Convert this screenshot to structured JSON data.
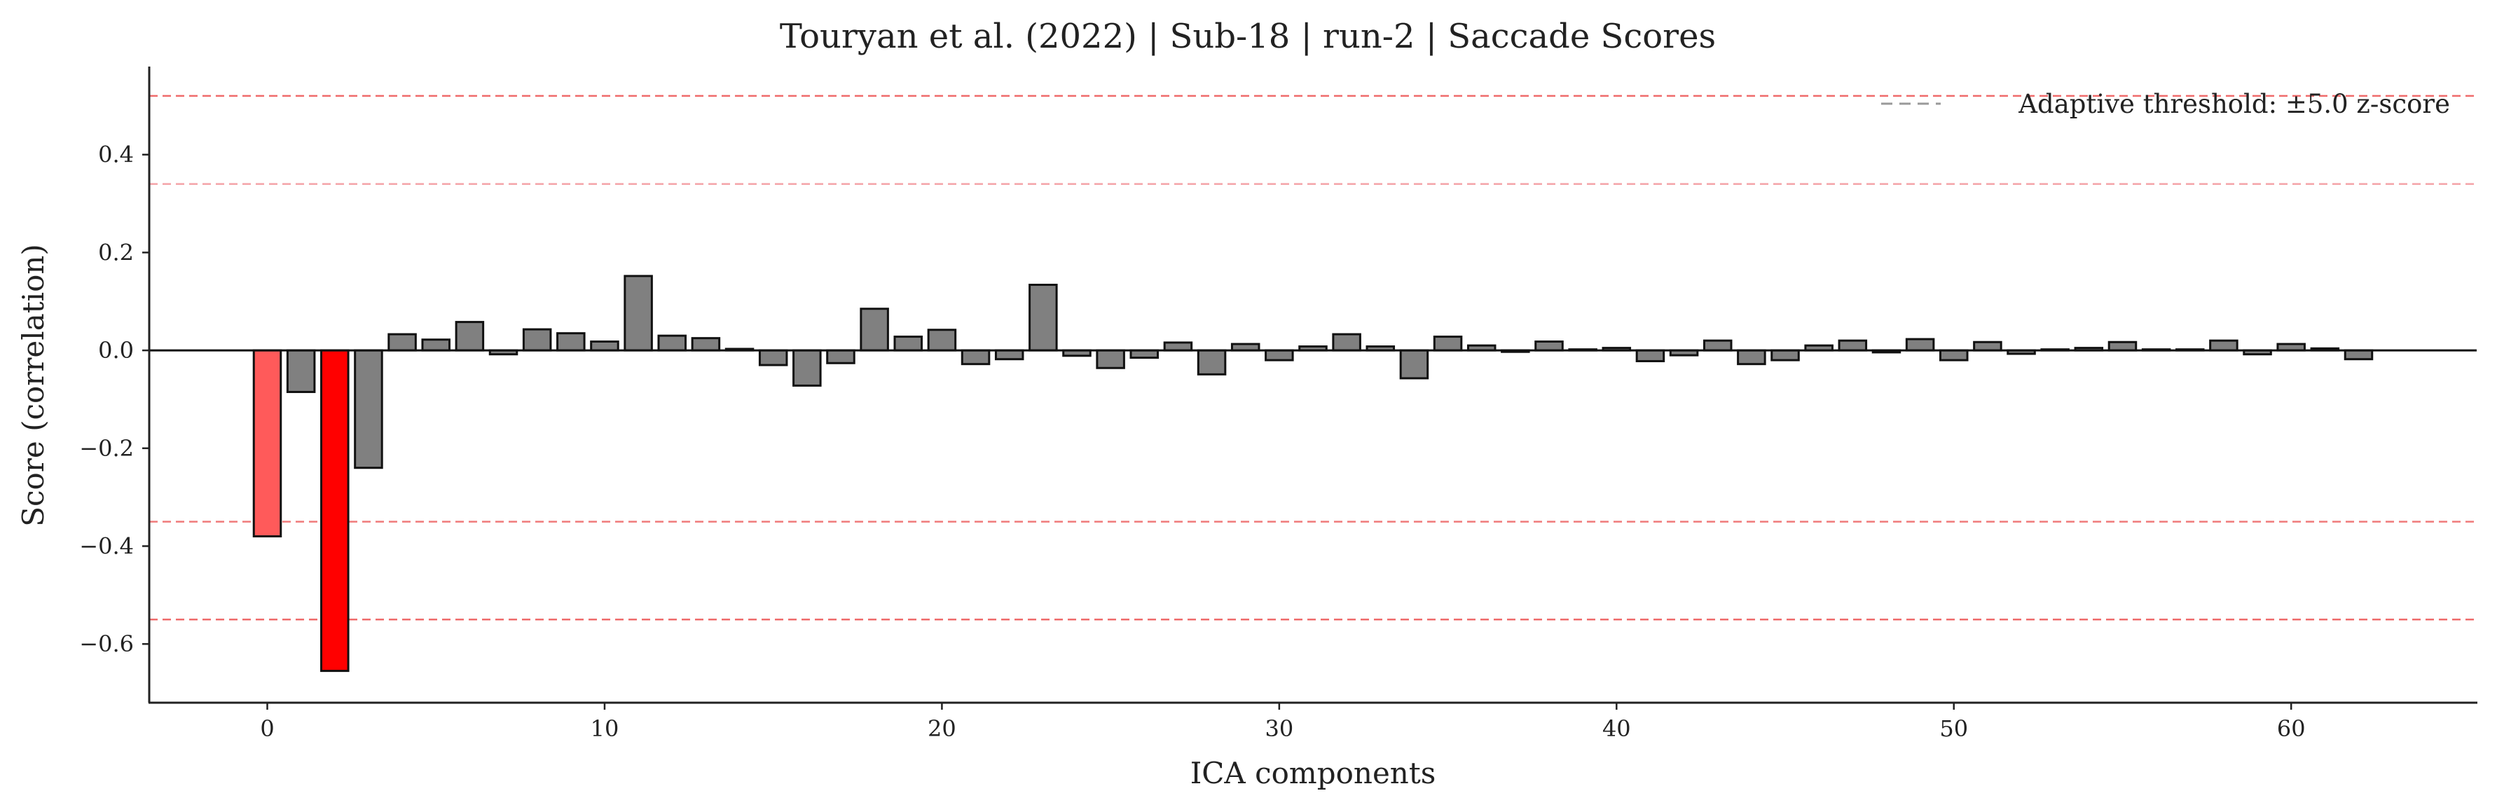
{
  "chart_data": {
    "type": "bar",
    "title": "Touryan et al. (2022) | Sub-18 | run-2 | Saccade Scores",
    "xlabel": "ICA components",
    "ylabel": "Score (correlation)",
    "xlim": [
      -3.5,
      65.5
    ],
    "ylim": [
      -0.72,
      0.58
    ],
    "x_ticks": [
      0,
      10,
      20,
      30,
      40,
      50,
      60
    ],
    "x_tick_labels": [
      "0",
      "10",
      "20",
      "30",
      "40",
      "50",
      "60"
    ],
    "y_ticks": [
      -0.6,
      -0.4,
      -0.2,
      0.0,
      0.2,
      0.4
    ],
    "y_tick_labels": [
      "−0.6",
      "−0.4",
      "−0.2",
      "0.0",
      "0.2",
      "0.4"
    ],
    "grid": false,
    "legend": {
      "placement": "top-right",
      "entries": [
        {
          "label": "Adaptive threshold: ±5.0 z-score",
          "style": "dashed",
          "color": "#999999"
        }
      ]
    },
    "thresholds": [
      {
        "value": 0.52,
        "color": "#ef6b6b"
      },
      {
        "value": 0.34,
        "color": "#f4a3a8"
      },
      {
        "value": -0.35,
        "color": "#ef7b7b"
      },
      {
        "value": -0.55,
        "color": "#ef6b6b"
      }
    ],
    "colors": {
      "default_bar": "#808080",
      "bar_edge": "#111111",
      "flagged_light": "#ff5a5a",
      "flagged_strong": "#ff0000"
    },
    "highlighted": [
      {
        "index": 0,
        "color": "#ff5a5a"
      },
      {
        "index": 2,
        "color": "#ff0000"
      }
    ],
    "x": [
      0,
      1,
      2,
      3,
      4,
      5,
      6,
      7,
      8,
      9,
      10,
      11,
      12,
      13,
      14,
      15,
      16,
      17,
      18,
      19,
      20,
      21,
      22,
      23,
      24,
      25,
      26,
      27,
      28,
      29,
      30,
      31,
      32,
      33,
      34,
      35,
      36,
      37,
      38,
      39,
      40,
      41,
      42,
      43,
      44,
      45,
      46,
      47,
      48,
      49,
      50,
      51,
      52,
      53,
      54,
      55,
      56,
      57,
      58,
      59,
      60,
      61,
      62
    ],
    "values": [
      -0.38,
      -0.085,
      -0.655,
      -0.24,
      0.033,
      0.022,
      0.058,
      -0.008,
      0.043,
      0.035,
      0.018,
      0.152,
      0.03,
      0.025,
      0.003,
      -0.03,
      -0.072,
      -0.026,
      0.085,
      0.028,
      0.042,
      -0.028,
      -0.018,
      0.134,
      -0.011,
      -0.036,
      -0.015,
      0.016,
      -0.049,
      0.013,
      -0.02,
      0.008,
      0.033,
      0.008,
      -0.057,
      0.028,
      0.01,
      -0.003,
      0.018,
      0.002,
      0.005,
      -0.022,
      -0.01,
      0.02,
      -0.028,
      -0.02,
      0.01,
      0.02,
      -0.004,
      0.023,
      -0.02,
      0.017,
      -0.007,
      0.002,
      0.005,
      0.017,
      0.002,
      0.002,
      0.02,
      -0.008,
      0.013,
      0.004,
      -0.018
    ]
  }
}
